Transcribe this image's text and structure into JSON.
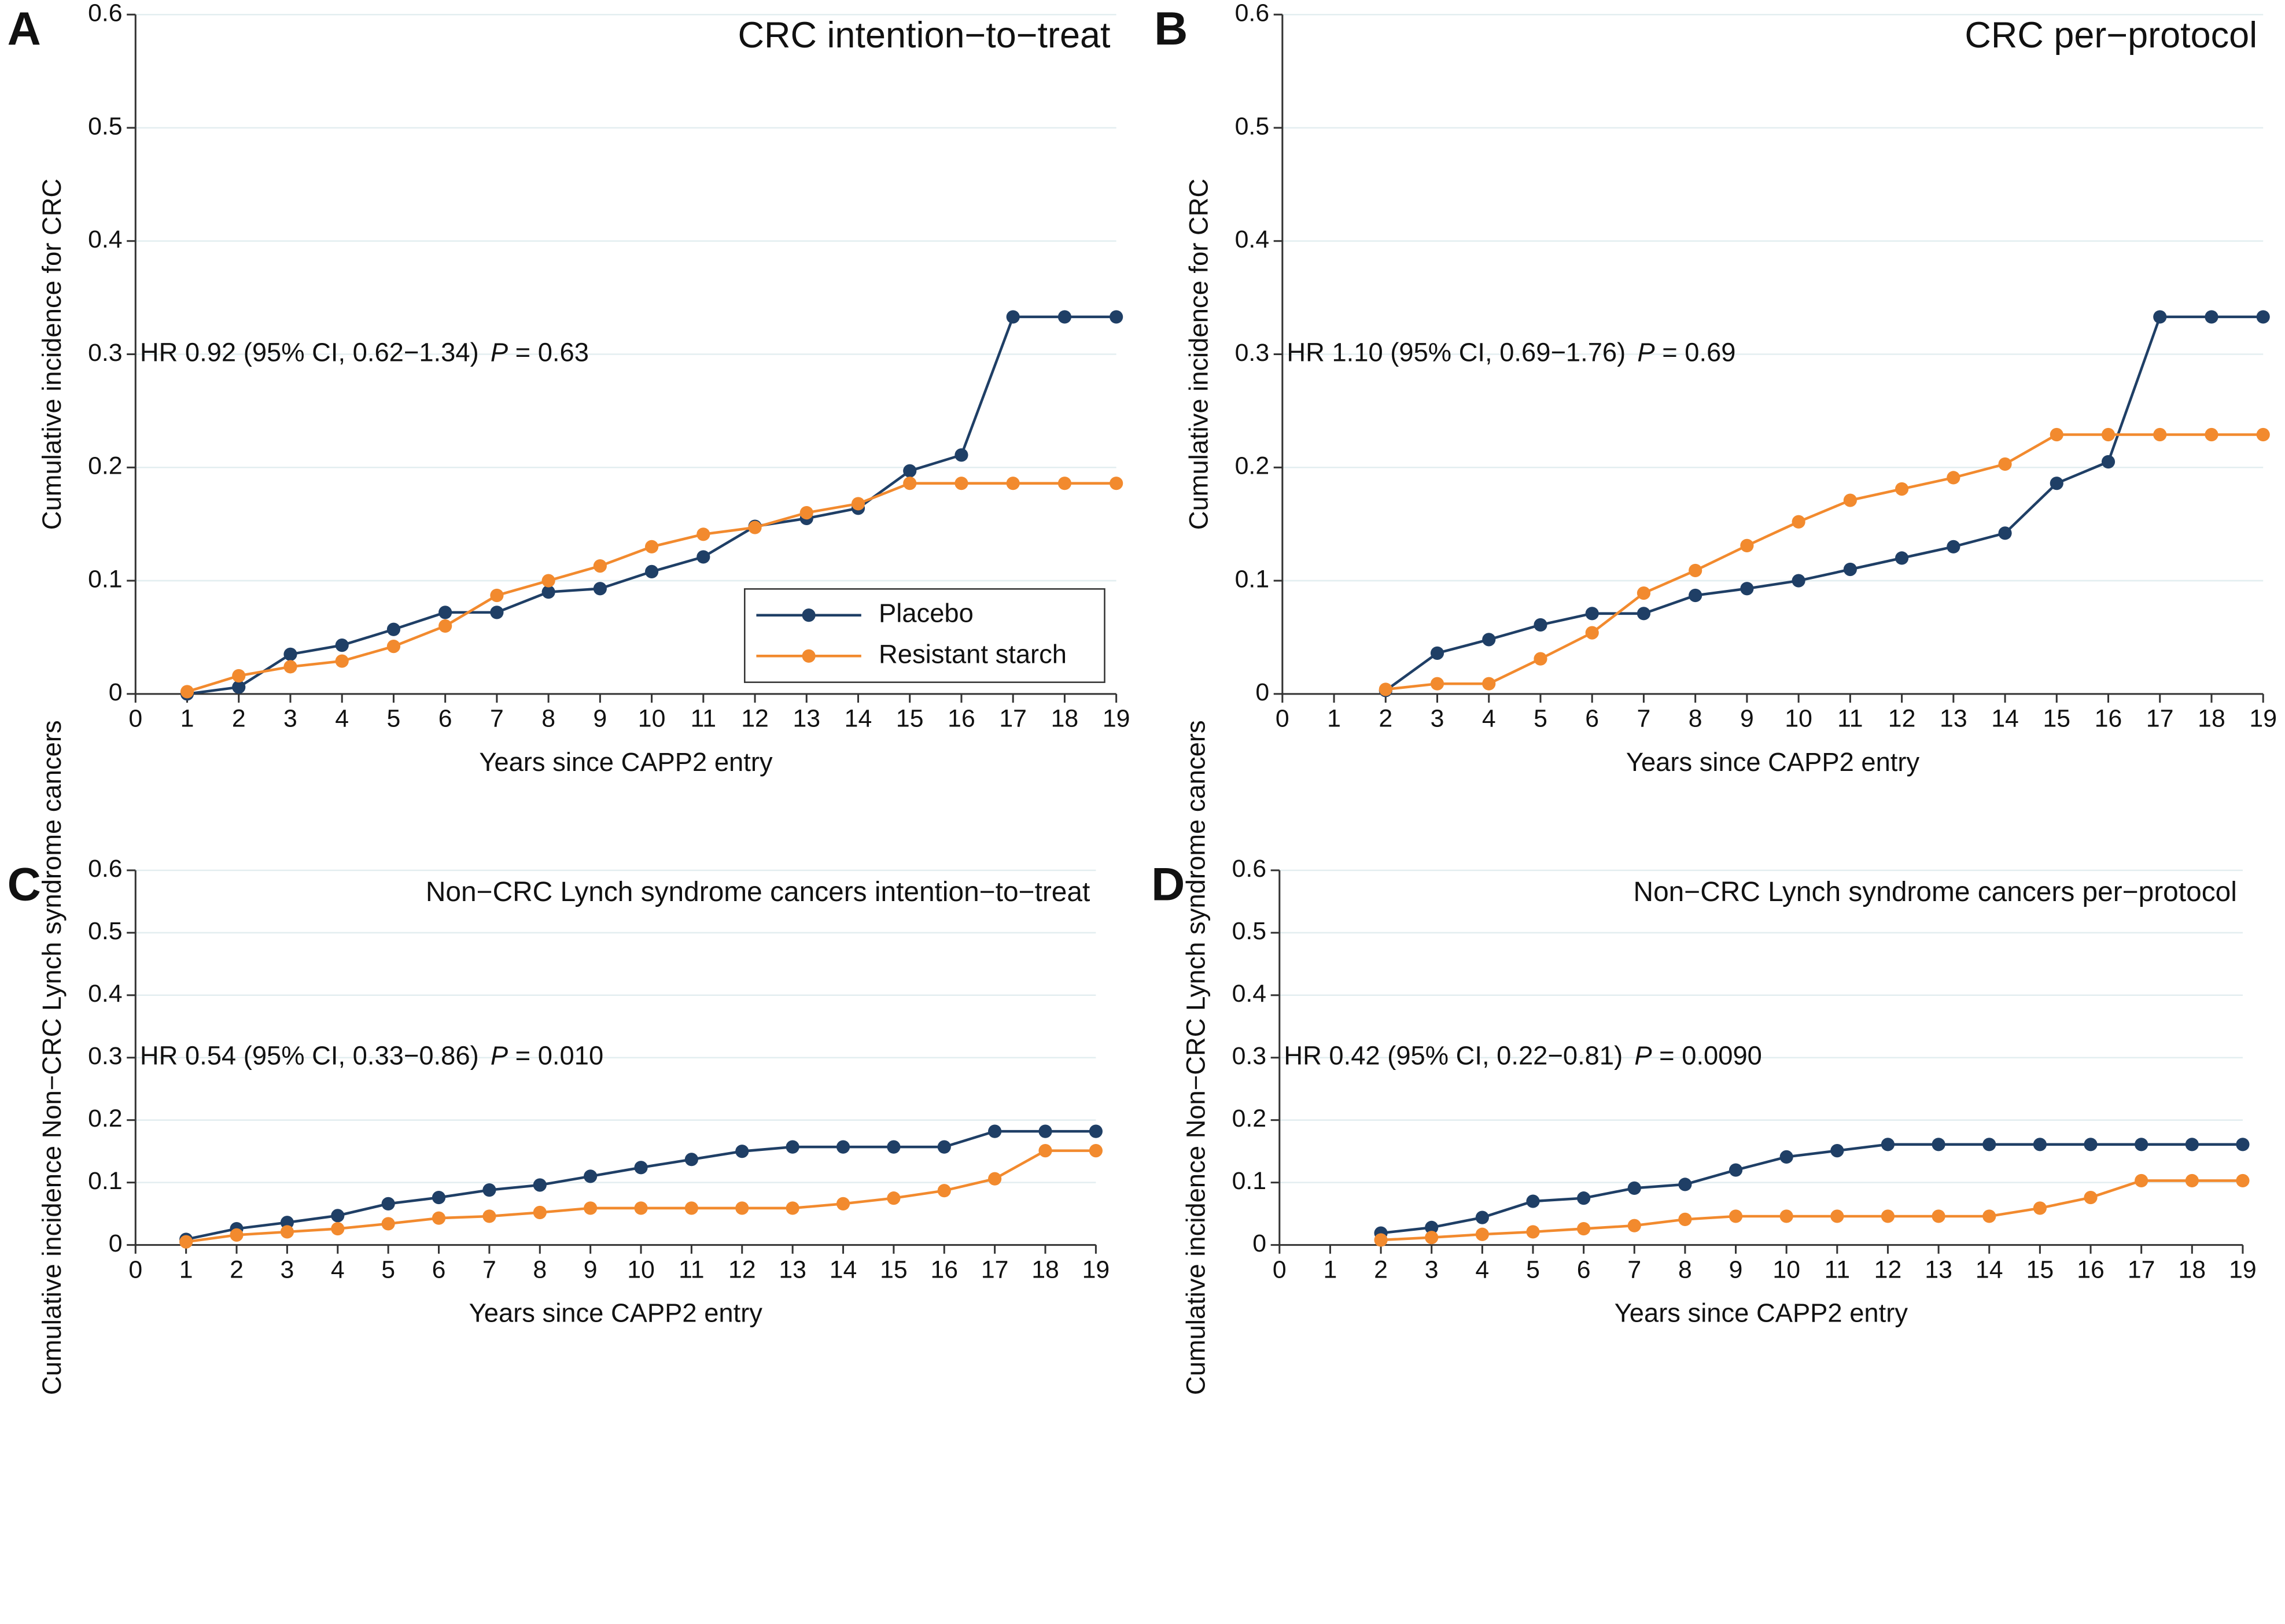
{
  "chart_data": [
    {
      "type": "line",
      "panel_label": "A",
      "title": "CRC intention−to−treat",
      "annotation": "HR 0.92 (95% CI, 0.62−1.34)",
      "p_label": "P",
      "p_value": "= 0.63",
      "x_label": "Years since CAPP2 entry",
      "y_label": "Cumulative incidence for CRC",
      "x": [
        1,
        2,
        3,
        4,
        5,
        6,
        7,
        8,
        9,
        10,
        11,
        12,
        13,
        14,
        15,
        16,
        17,
        18,
        19
      ],
      "series": [
        {
          "name": "Placebo",
          "color": "#1f3f66",
          "values": [
            0,
            0.006,
            0.035,
            0.043,
            0.057,
            0.072,
            0.072,
            0.09,
            0.093,
            0.108,
            0.121,
            0.148,
            0.155,
            0.164,
            0.197,
            0.211,
            0.333,
            0.333,
            0.333
          ]
        },
        {
          "name": "Resistant starch",
          "color": "#f28a2e",
          "values": [
            0.002,
            0.016,
            0.024,
            0.029,
            0.042,
            0.06,
            0.087,
            0.1,
            0.113,
            0.13,
            0.141,
            0.147,
            0.16,
            0.168,
            0.186,
            0.186,
            0.186,
            0.186,
            0.186
          ]
        }
      ],
      "xlim": [
        0,
        19
      ],
      "ylim": [
        0,
        0.6
      ],
      "xticks": [
        0,
        1,
        2,
        3,
        4,
        5,
        6,
        7,
        8,
        9,
        10,
        11,
        12,
        13,
        14,
        15,
        16,
        17,
        18,
        19
      ],
      "yticks": [
        0,
        0.1,
        0.2,
        0.3,
        0.4,
        0.5,
        0.6
      ],
      "grid": true,
      "legend": "lower right"
    },
    {
      "type": "line",
      "panel_label": "B",
      "title": "CRC per−protocol",
      "annotation": "HR 1.10 (95% CI, 0.69−1.76)",
      "p_label": "P",
      "p_value": "= 0.69",
      "x_label": "Years since CAPP2 entry",
      "y_label": "Cumulative incidence for CRC",
      "x": [
        2,
        3,
        4,
        5,
        6,
        7,
        8,
        9,
        10,
        11,
        12,
        13,
        14,
        15,
        16,
        17,
        18,
        19
      ],
      "series": [
        {
          "name": "Placebo",
          "color": "#1f3f66",
          "values": [
            0.003,
            0.036,
            0.048,
            0.061,
            0.071,
            0.071,
            0.087,
            0.093,
            0.1,
            0.11,
            0.12,
            0.13,
            0.142,
            0.186,
            0.205,
            0.333,
            0.333,
            0.333
          ]
        },
        {
          "name": "Resistant starch",
          "color": "#f28a2e",
          "values": [
            0.004,
            0.009,
            0.009,
            0.031,
            0.054,
            0.089,
            0.109,
            0.131,
            0.152,
            0.171,
            0.181,
            0.191,
            0.203,
            0.229,
            0.229,
            0.229,
            0.229,
            0.229
          ]
        }
      ],
      "xlim": [
        0,
        19
      ],
      "ylim": [
        0,
        0.6
      ],
      "xticks": [
        0,
        1,
        2,
        3,
        4,
        5,
        6,
        7,
        8,
        9,
        10,
        11,
        12,
        13,
        14,
        15,
        16,
        17,
        18,
        19
      ],
      "yticks": [
        0,
        0.1,
        0.2,
        0.3,
        0.4,
        0.5,
        0.6
      ],
      "grid": true
    },
    {
      "type": "line",
      "panel_label": "C",
      "title": "Non−CRC Lynch syndrome cancers intention−to−treat",
      "annotation": "HR 0.54 (95% CI, 0.33−0.86)",
      "p_label": "P",
      "p_value": "= 0.010",
      "x_label": "Years since CAPP2 entry",
      "y_label": "Cumulative incidence Non−CRC Lynch syndrome cancers",
      "x": [
        1,
        2,
        3,
        4,
        5,
        6,
        7,
        8,
        9,
        10,
        11,
        12,
        13,
        14,
        15,
        16,
        17,
        18,
        19
      ],
      "series": [
        {
          "name": "Placebo",
          "color": "#1f3f66",
          "values": [
            0.009,
            0.026,
            0.036,
            0.047,
            0.066,
            0.076,
            0.088,
            0.096,
            0.11,
            0.124,
            0.137,
            0.15,
            0.157,
            0.157,
            0.157,
            0.157,
            0.182,
            0.182,
            0.182
          ]
        },
        {
          "name": "Resistant starch",
          "color": "#f28a2e",
          "values": [
            0.005,
            0.016,
            0.021,
            0.026,
            0.034,
            0.043,
            0.046,
            0.052,
            0.059,
            0.059,
            0.059,
            0.059,
            0.059,
            0.066,
            0.075,
            0.087,
            0.106,
            0.151,
            0.151
          ]
        }
      ],
      "xlim": [
        0,
        19
      ],
      "ylim": [
        0,
        0.6
      ],
      "xticks": [
        0,
        1,
        2,
        3,
        4,
        5,
        6,
        7,
        8,
        9,
        10,
        11,
        12,
        13,
        14,
        15,
        16,
        17,
        18,
        19
      ],
      "yticks": [
        0,
        0.1,
        0.2,
        0.3,
        0.4,
        0.5,
        0.6
      ],
      "grid": true
    },
    {
      "type": "line",
      "panel_label": "D",
      "title": "Non−CRC Lynch syndrome cancers per−protocol",
      "annotation": "HR 0.42 (95% CI, 0.22−0.81)",
      "p_label": "P",
      "p_value": "= 0.0090",
      "x_label": "Years since CAPP2 entry",
      "y_label": "Cumulative incidence Non−CRC Lynch syndrome cancers",
      "x": [
        2,
        3,
        4,
        5,
        6,
        7,
        8,
        9,
        10,
        11,
        12,
        13,
        14,
        15,
        16,
        17,
        18,
        19
      ],
      "series": [
        {
          "name": "Placebo",
          "color": "#1f3f66",
          "values": [
            0.019,
            0.028,
            0.044,
            0.07,
            0.075,
            0.091,
            0.097,
            0.12,
            0.141,
            0.151,
            0.161,
            0.161,
            0.161,
            0.161,
            0.161,
            0.161,
            0.161,
            0.161
          ]
        },
        {
          "name": "Resistant starch",
          "color": "#f28a2e",
          "values": [
            0.008,
            0.012,
            0.017,
            0.021,
            0.026,
            0.031,
            0.041,
            0.046,
            0.046,
            0.046,
            0.046,
            0.046,
            0.046,
            0.059,
            0.076,
            0.103,
            0.103,
            0.103
          ]
        }
      ],
      "xlim": [
        0,
        19
      ],
      "ylim": [
        0,
        0.6
      ],
      "xticks": [
        0,
        1,
        2,
        3,
        4,
        5,
        6,
        7,
        8,
        9,
        10,
        11,
        12,
        13,
        14,
        15,
        16,
        17,
        18,
        19
      ],
      "yticks": [
        0,
        0.1,
        0.2,
        0.3,
        0.4,
        0.5,
        0.6
      ],
      "grid": true
    }
  ]
}
